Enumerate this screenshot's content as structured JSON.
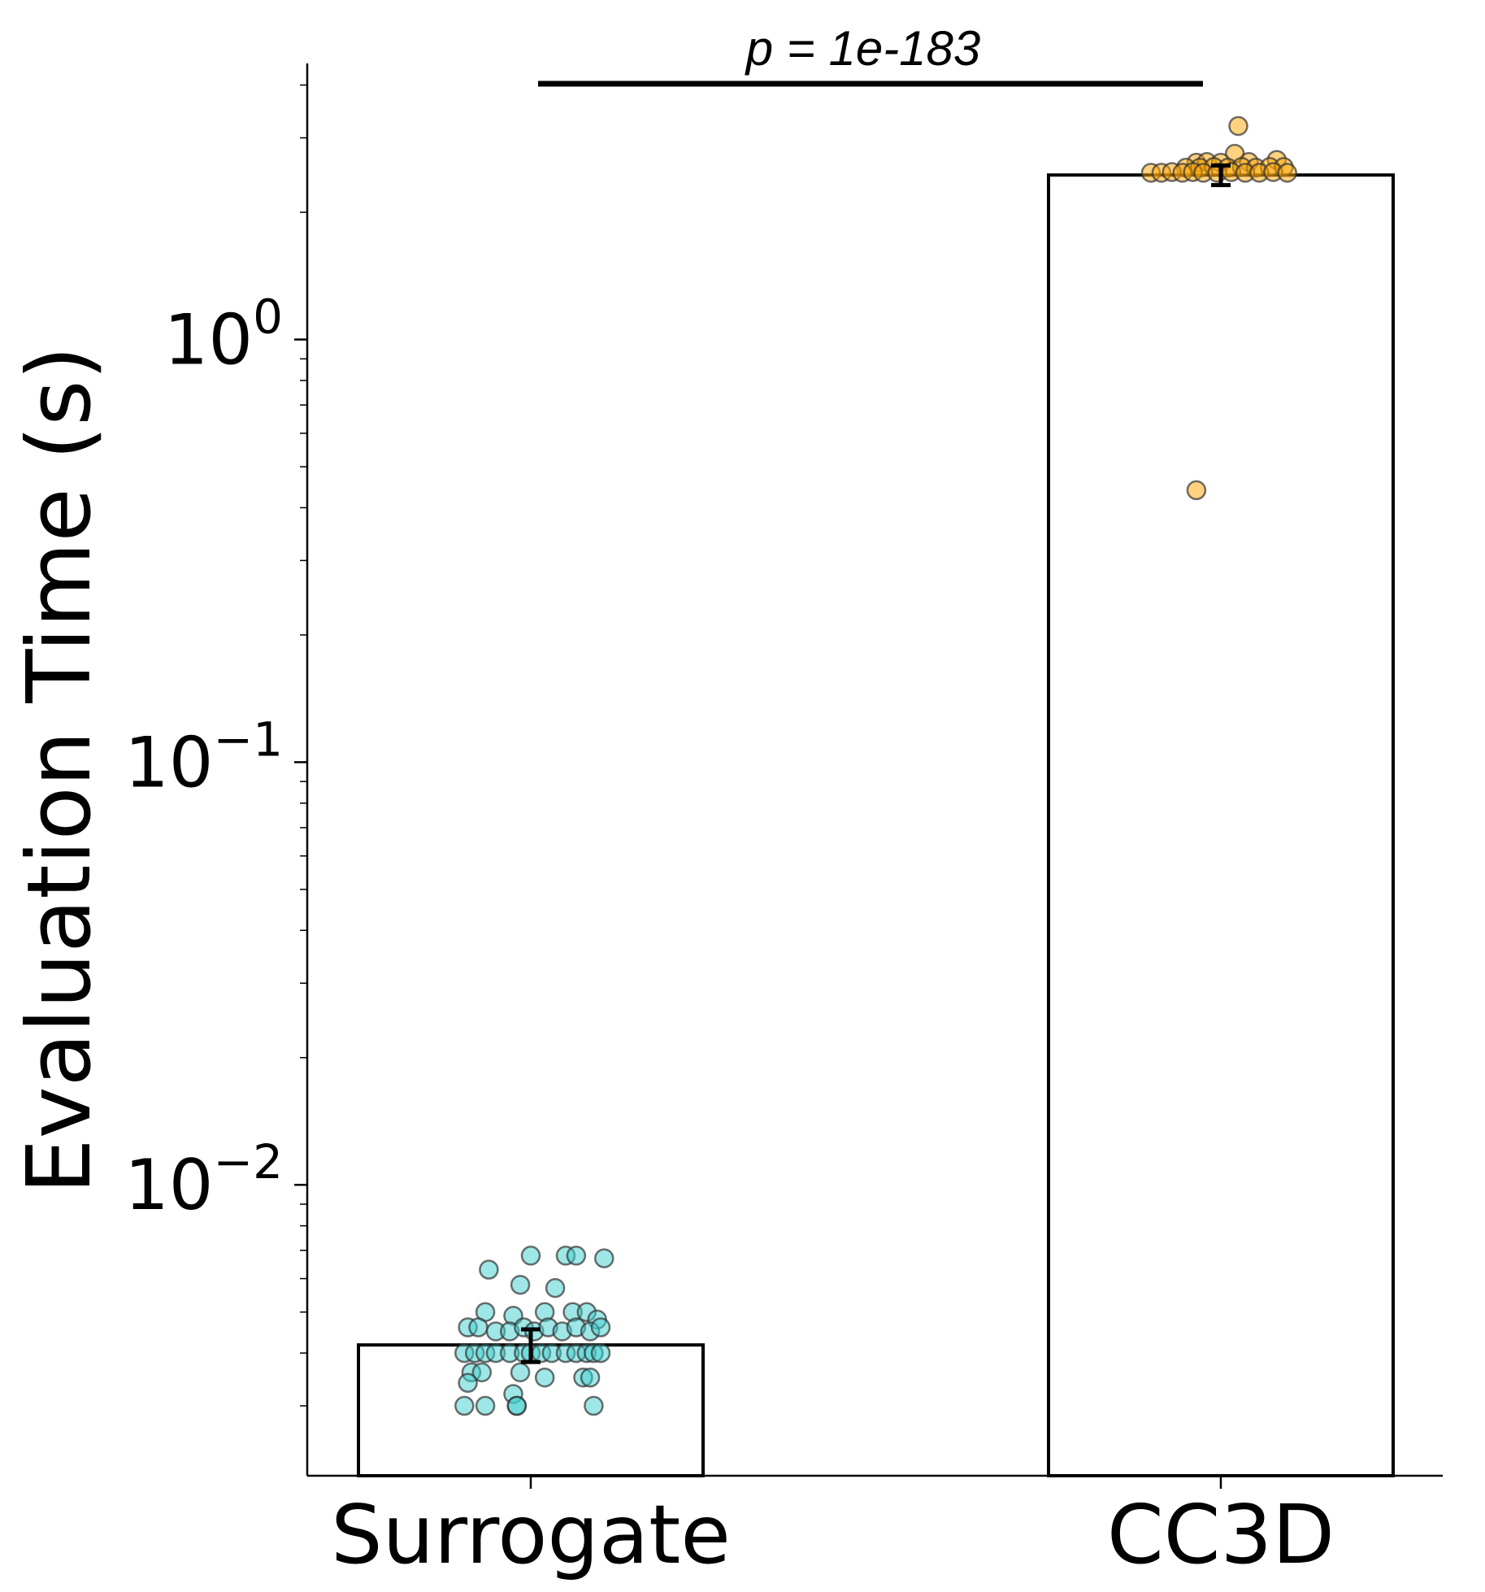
{
  "chart_data": {
    "type": "bar",
    "log_scale_y": true,
    "ylabel": "Evaluation Time (s)",
    "xlabel": "",
    "title": "",
    "ylim": [
      0.00205,
      4.5
    ],
    "y_ticks": [
      {
        "value": 0.01,
        "base": "10",
        "exp": "−2"
      },
      {
        "value": 0.1,
        "base": "10",
        "exp": "−1"
      },
      {
        "value": 1,
        "base": "10",
        "exp": "0"
      }
    ],
    "categories": [
      "Surrogate",
      "CC3D"
    ],
    "values": [
      0.00418,
      2.45
    ],
    "error": [
      0.00037,
      0.13
    ],
    "colors": {
      "Surrogate": "#40D0D0",
      "CC3D": "#FFA500",
      "bar_fill": "#ffffff",
      "edge": "#000000"
    },
    "annotation": {
      "text": "p = 1e-183",
      "between": [
        "Surrogate",
        "CC3D"
      ]
    },
    "points": {
      "Surrogate": [
        {
          "dx": -0.12,
          "y": 0.0063
        },
        {
          "dx": 0.0,
          "y": 0.0068
        },
        {
          "dx": 0.1,
          "y": 0.0068
        },
        {
          "dx": 0.13,
          "y": 0.0068
        },
        {
          "dx": 0.21,
          "y": 0.0067
        },
        {
          "dx": -0.03,
          "y": 0.0058
        },
        {
          "dx": 0.07,
          "y": 0.0057
        },
        {
          "dx": -0.13,
          "y": 0.005
        },
        {
          "dx": -0.05,
          "y": 0.0049
        },
        {
          "dx": 0.04,
          "y": 0.005
        },
        {
          "dx": 0.12,
          "y": 0.005
        },
        {
          "dx": 0.16,
          "y": 0.005
        },
        {
          "dx": 0.19,
          "y": 0.0048
        },
        {
          "dx": -0.18,
          "y": 0.0046
        },
        {
          "dx": -0.15,
          "y": 0.0046
        },
        {
          "dx": -0.1,
          "y": 0.0045
        },
        {
          "dx": -0.06,
          "y": 0.0045
        },
        {
          "dx": -0.02,
          "y": 0.0046
        },
        {
          "dx": 0.01,
          "y": 0.0045
        },
        {
          "dx": 0.05,
          "y": 0.0046
        },
        {
          "dx": 0.09,
          "y": 0.0045
        },
        {
          "dx": 0.13,
          "y": 0.0046
        },
        {
          "dx": 0.17,
          "y": 0.0045
        },
        {
          "dx": 0.2,
          "y": 0.0046
        },
        {
          "dx": -0.19,
          "y": 0.004
        },
        {
          "dx": -0.16,
          "y": 0.004
        },
        {
          "dx": -0.13,
          "y": 0.004
        },
        {
          "dx": -0.1,
          "y": 0.004
        },
        {
          "dx": -0.06,
          "y": 0.004
        },
        {
          "dx": -0.02,
          "y": 0.004
        },
        {
          "dx": 0.0,
          "y": 0.004
        },
        {
          "dx": 0.03,
          "y": 0.004
        },
        {
          "dx": 0.06,
          "y": 0.004
        },
        {
          "dx": 0.1,
          "y": 0.004
        },
        {
          "dx": 0.13,
          "y": 0.004
        },
        {
          "dx": 0.16,
          "y": 0.004
        },
        {
          "dx": 0.18,
          "y": 0.004
        },
        {
          "dx": 0.2,
          "y": 0.004
        },
        {
          "dx": -0.17,
          "y": 0.0036
        },
        {
          "dx": -0.14,
          "y": 0.0036
        },
        {
          "dx": -0.03,
          "y": 0.0036
        },
        {
          "dx": 0.04,
          "y": 0.0035
        },
        {
          "dx": 0.15,
          "y": 0.0035
        },
        {
          "dx": 0.17,
          "y": 0.0035
        },
        {
          "dx": -0.18,
          "y": 0.0034
        },
        {
          "dx": -0.05,
          "y": 0.0032
        },
        {
          "dx": -0.04,
          "y": 0.003
        },
        {
          "dx": -0.19,
          "y": 0.003
        },
        {
          "dx": -0.13,
          "y": 0.003
        },
        {
          "dx": -0.04,
          "y": 0.003
        },
        {
          "dx": 0.18,
          "y": 0.003
        }
      ],
      "CC3D": [
        {
          "dx": 0.05,
          "y": 3.2
        },
        {
          "dx": 0.04,
          "y": 2.75
        },
        {
          "dx": -0.07,
          "y": 2.62
        },
        {
          "dx": -0.04,
          "y": 2.63
        },
        {
          "dx": 0.0,
          "y": 2.62
        },
        {
          "dx": 0.08,
          "y": 2.63
        },
        {
          "dx": 0.16,
          "y": 2.66
        },
        {
          "dx": -0.1,
          "y": 2.55
        },
        {
          "dx": -0.06,
          "y": 2.55
        },
        {
          "dx": -0.02,
          "y": 2.56
        },
        {
          "dx": 0.02,
          "y": 2.55
        },
        {
          "dx": 0.06,
          "y": 2.56
        },
        {
          "dx": 0.1,
          "y": 2.55
        },
        {
          "dx": 0.14,
          "y": 2.56
        },
        {
          "dx": 0.18,
          "y": 2.56
        },
        {
          "dx": -0.2,
          "y": 2.48
        },
        {
          "dx": -0.17,
          "y": 2.48
        },
        {
          "dx": -0.14,
          "y": 2.49
        },
        {
          "dx": -0.11,
          "y": 2.48
        },
        {
          "dx": -0.08,
          "y": 2.49
        },
        {
          "dx": -0.05,
          "y": 2.48
        },
        {
          "dx": -0.01,
          "y": 2.48
        },
        {
          "dx": 0.03,
          "y": 2.49
        },
        {
          "dx": 0.07,
          "y": 2.48
        },
        {
          "dx": 0.11,
          "y": 2.48
        },
        {
          "dx": 0.15,
          "y": 2.49
        },
        {
          "dx": 0.19,
          "y": 2.48
        },
        {
          "dx": -0.07,
          "y": 0.44
        }
      ]
    }
  }
}
